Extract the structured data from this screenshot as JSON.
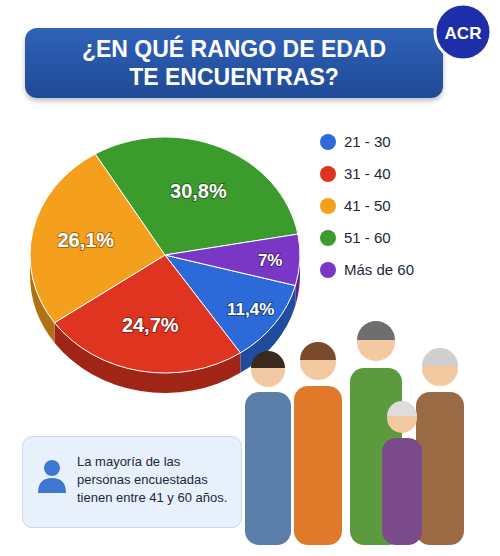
{
  "chart_data": {
    "type": "pie",
    "title": "¿EN QUÉ RANGO DE EDAD TE ENCUENTRAS?",
    "categories": [
      "21 - 30",
      "31 - 40",
      "41 - 50",
      "51 - 60",
      "Más de 60"
    ],
    "values": [
      11.4,
      24.7,
      26.1,
      30.8,
      7
    ],
    "value_labels": [
      "11,4%",
      "24,7%",
      "26,1%",
      "30,8%",
      "7%"
    ],
    "colors": [
      "#2b6ad8",
      "#df3420",
      "#f4a01c",
      "#3b9b2c",
      "#7a36c4"
    ],
    "data_labels": true,
    "legend": "right",
    "annotation": "La mayoría de las personas encuestadas tienen entre 41 y 60 años.",
    "logo": "ACR"
  }
}
